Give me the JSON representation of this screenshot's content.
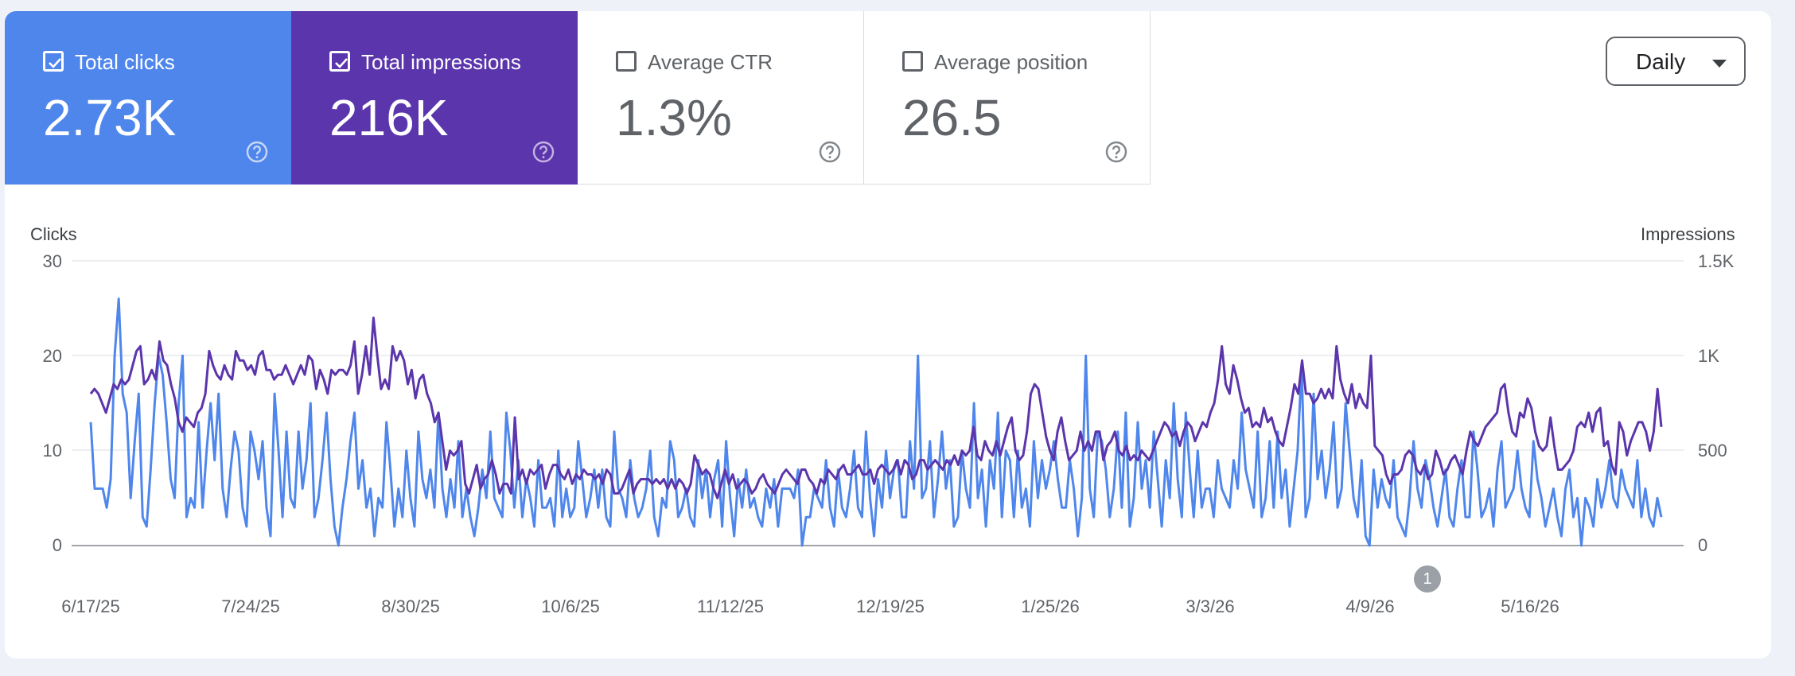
{
  "tiles": [
    {
      "label": "Total clicks",
      "value": "2.73K",
      "checked": true,
      "bg": "#4f86ec"
    },
    {
      "label": "Total impressions",
      "value": "216K",
      "checked": true,
      "bg": "#5b35ab"
    },
    {
      "label": "Average CTR",
      "value": "1.3%",
      "checked": false,
      "bg": "#ffffff"
    },
    {
      "label": "Average position",
      "value": "26.5",
      "checked": false,
      "bg": "#ffffff"
    }
  ],
  "range_select": {
    "value": "Daily"
  },
  "icons": {
    "help": "help-circle-icon",
    "check": "check-icon",
    "caret": "caret-down-icon"
  },
  "annotation": {
    "label": "1"
  },
  "chart_data": {
    "type": "line",
    "left_axis": {
      "label": "Clicks",
      "ticks": [
        "30",
        "20",
        "10",
        "0"
      ],
      "range": [
        0,
        30
      ]
    },
    "right_axis": {
      "label": "Impressions",
      "ticks": [
        "1.5K",
        "1K",
        "500",
        "0"
      ],
      "range": [
        0,
        1500
      ]
    },
    "x_ticks": [
      "6/17/25",
      "7/24/25",
      "8/30/25",
      "10/6/25",
      "11/12/25",
      "12/19/25",
      "1/25/26",
      "3/3/26",
      "4/9/26",
      "5/16/26"
    ],
    "x_range": [
      "6/17/25",
      "6/29/26"
    ],
    "grid": true,
    "series": [
      {
        "name": "Total clicks",
        "axis": "left",
        "color": "#4f86ec",
        "values": [
          13,
          6,
          6,
          6,
          4,
          7,
          20,
          26,
          16,
          14,
          5,
          11,
          16,
          3,
          2,
          8,
          15,
          20,
          18,
          13,
          7,
          5,
          15,
          20,
          3,
          5,
          4,
          13,
          4,
          10,
          15,
          9,
          16,
          6,
          3,
          8,
          12,
          10,
          4,
          2,
          12,
          10,
          7,
          11,
          4,
          1,
          16,
          10,
          3,
          12,
          5,
          4,
          12,
          6,
          9,
          15,
          3,
          5,
          9,
          14,
          7,
          2,
          0,
          4,
          7,
          11,
          14,
          6,
          9,
          4,
          6,
          1,
          5,
          4,
          13,
          8,
          2,
          6,
          3,
          10,
          5,
          2,
          12,
          7,
          5,
          8,
          4,
          14,
          6,
          3,
          7,
          4,
          11,
          3,
          6,
          3,
          1,
          4,
          8,
          5,
          12,
          5,
          4,
          3,
          14,
          10,
          4,
          9,
          3,
          7,
          5,
          2,
          9,
          4,
          4,
          5,
          2,
          10,
          3,
          6,
          3,
          4,
          11,
          7,
          3,
          5,
          8,
          4,
          8,
          3,
          2,
          12,
          6,
          5,
          3,
          9,
          5,
          3,
          4,
          6,
          10,
          3,
          1,
          5,
          4,
          11,
          9,
          3,
          4,
          6,
          3,
          2,
          9,
          5,
          8,
          3,
          7,
          9,
          2,
          11,
          5,
          1,
          7,
          4,
          8,
          4,
          5,
          3,
          2,
          6,
          4,
          7,
          2,
          6,
          6,
          6,
          5,
          8,
          0,
          3,
          3,
          6,
          5,
          4,
          9,
          4,
          2,
          8,
          4,
          3,
          6,
          10,
          4,
          3,
          12,
          5,
          1,
          7,
          4,
          10,
          5,
          8,
          9,
          3,
          3,
          11,
          6,
          20,
          5,
          6,
          11,
          3,
          7,
          12,
          6,
          9,
          2,
          3,
          10,
          6,
          4,
          15,
          5,
          8,
          2,
          9,
          6,
          14,
          3,
          10,
          9,
          3,
          10,
          4,
          6,
          2,
          11,
          5,
          9,
          6,
          8,
          11,
          7,
          4,
          4,
          9,
          6,
          1,
          5,
          20,
          6,
          3,
          12,
          11,
          8,
          3,
          6,
          12,
          4,
          14,
          2,
          5,
          13,
          6,
          9,
          4,
          12,
          7,
          2,
          9,
          5,
          15,
          7,
          3,
          14,
          8,
          3,
          10,
          4,
          6,
          6,
          3,
          9,
          6,
          5,
          4,
          9,
          6,
          14,
          8,
          6,
          4,
          12,
          3,
          5,
          11,
          4,
          12,
          5,
          8,
          2,
          6,
          10,
          19,
          3,
          5,
          16,
          7,
          10,
          5,
          8,
          13,
          4,
          6,
          15,
          10,
          5,
          3,
          9,
          1,
          0,
          8,
          4,
          7,
          5,
          4,
          9,
          3,
          2,
          1,
          5,
          11,
          6,
          4,
          9,
          7,
          4,
          2,
          5,
          8,
          3,
          2,
          6,
          9,
          3,
          3,
          12,
          8,
          3,
          4,
          6,
          2,
          8,
          11,
          4,
          5,
          6,
          10,
          6,
          4,
          3,
          11,
          7,
          5,
          2,
          4,
          6,
          3,
          1,
          6,
          8,
          3,
          5,
          0,
          5,
          4,
          2,
          7,
          4,
          6,
          9,
          5,
          4,
          8,
          6,
          5,
          4,
          9,
          3,
          6,
          3,
          2,
          5,
          3
        ]
      },
      {
        "name": "Total impressions",
        "axis": "left",
        "color": "#5b35ab",
        "values": [
          16,
          16.5,
          16,
          15,
          14,
          15.5,
          17,
          16.5,
          17.5,
          17,
          17.5,
          19,
          20.5,
          21,
          17,
          17.5,
          18.5,
          17.5,
          21.5,
          19.5,
          19,
          17,
          15.5,
          13,
          12,
          13.5,
          13,
          12.5,
          14,
          14.5,
          16,
          20.5,
          19,
          18,
          17.5,
          19,
          18,
          17.5,
          20.5,
          19.5,
          19.5,
          18.5,
          19,
          18,
          20,
          20.5,
          18.5,
          18.5,
          17.5,
          18,
          18,
          19,
          18,
          17,
          18,
          19,
          18,
          20,
          19.5,
          16.5,
          18.5,
          17.5,
          16,
          18.5,
          18,
          18.5,
          18.5,
          18,
          19,
          21.5,
          16,
          18,
          21,
          18,
          24,
          20,
          16.5,
          17.5,
          16.5,
          21,
          19.5,
          20.5,
          19.5,
          17,
          18.5,
          15.5,
          17.5,
          18,
          16,
          15,
          13,
          14,
          11,
          8,
          10,
          9.5,
          10,
          11,
          6.5,
          5.5,
          7,
          8.5,
          6,
          7,
          7.5,
          9,
          7.5,
          5.5,
          6.5,
          6.5,
          5.5,
          13.5,
          7,
          8,
          6.5,
          8,
          7.5,
          8,
          8.5,
          6,
          7.5,
          8.5,
          8.5,
          7.5,
          7,
          8,
          6.5,
          7.5,
          7,
          8,
          7.5,
          7.5,
          7,
          7.5,
          6.5,
          8,
          7.5,
          5.5,
          5.5,
          6,
          7,
          8,
          5.5,
          6.5,
          7,
          7,
          7,
          6.5,
          7,
          6.5,
          7,
          6,
          7,
          6,
          7,
          6.5,
          5.5,
          6.5,
          9.5,
          8.5,
          7.5,
          8,
          7.5,
          6,
          5,
          6.5,
          8,
          6.5,
          7.5,
          6,
          6.5,
          7,
          6.5,
          5.5,
          6,
          7,
          7.5,
          6.5,
          6,
          5.5,
          6.5,
          7.5,
          8,
          7.5,
          7,
          6.5,
          8,
          8,
          7,
          6.5,
          5.5,
          7,
          6.5,
          8,
          7.5,
          7,
          8,
          8.5,
          7.5,
          7.5,
          8,
          8.5,
          7.5,
          7.5,
          8,
          6.5,
          8,
          8.5,
          8,
          7.5,
          8,
          9,
          7.5,
          9,
          8.5,
          7,
          7.5,
          9,
          9,
          8,
          8.5,
          9,
          8.5,
          8,
          9,
          8.5,
          9.5,
          8.5,
          10,
          9.5,
          10,
          12.5,
          9.5,
          9,
          11,
          10,
          9.5,
          11,
          9.5,
          11,
          12.5,
          13.5,
          10,
          9,
          9.5,
          12,
          16,
          17,
          16.5,
          14,
          11.5,
          10,
          9,
          12,
          13.5,
          11,
          9,
          9.5,
          10,
          12,
          10,
          11,
          10,
          12,
          12,
          9,
          10.5,
          11,
          12,
          10,
          9.5,
          10.5,
          9,
          9.5,
          9,
          10,
          9.5,
          9,
          10,
          11,
          12,
          13,
          12.5,
          11.5,
          12,
          10.5,
          12,
          13,
          12.5,
          11,
          12,
          13,
          12.5,
          14,
          15,
          17.5,
          21,
          17,
          16,
          19,
          17.5,
          15.5,
          14,
          14.5,
          12.5,
          13,
          12.5,
          14.5,
          13,
          13.5,
          12,
          11,
          10.5,
          12.5,
          14.5,
          17,
          16,
          19.5,
          16,
          16,
          15,
          15.5,
          16.5,
          15.5,
          16.5,
          15.5,
          21,
          17.5,
          16,
          15,
          17,
          14.5,
          16,
          15,
          14.5,
          20,
          10.5,
          10,
          9.5,
          7.5,
          6.5,
          7.5,
          7.5,
          8,
          9.5,
          10,
          9.5,
          8,
          7.5,
          8.5,
          7,
          7.5,
          10,
          9,
          7.5,
          8,
          9,
          9.5,
          8.5,
          7.5,
          10,
          12,
          11,
          10.5,
          11.5,
          12.5,
          13,
          13.5,
          14,
          16.5,
          17,
          14,
          12,
          11.5,
          14,
          13.5,
          15.5,
          14.5,
          12,
          10.5,
          10,
          10.5,
          13.5,
          10.5,
          8,
          8,
          8.5,
          9,
          10,
          12.5,
          13,
          12.5,
          14,
          12,
          14,
          14.5,
          10.5,
          11,
          8.5,
          7.5,
          13,
          12,
          9.5,
          11,
          12,
          13,
          13,
          12,
          10,
          12,
          16.5,
          12.5
        ]
      }
    ]
  }
}
